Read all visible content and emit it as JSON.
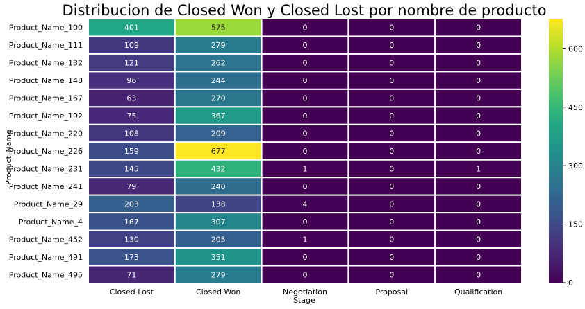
{
  "chart_data": {
    "type": "heatmap",
    "title": "Distribucion de Closed Won y Closed Lost por nombre de producto",
    "xlabel": "Stage",
    "ylabel": "Product_Name",
    "columns": [
      "Closed Lost",
      "Closed Won",
      "Negotiation",
      "Proposal",
      "Qualification"
    ],
    "rows": [
      "Product_Name_100",
      "Product_Name_111",
      "Product_Name_132",
      "Product_Name_148",
      "Product_Name_167",
      "Product_Name_192",
      "Product_Name_220",
      "Product_Name_226",
      "Product_Name_231",
      "Product_Name_241",
      "Product_Name_29",
      "Product_Name_4",
      "Product_Name_452",
      "Product_Name_491",
      "Product_Name_495"
    ],
    "values": [
      [
        401,
        575,
        0,
        0,
        0
      ],
      [
        109,
        279,
        0,
        0,
        0
      ],
      [
        121,
        262,
        0,
        0,
        0
      ],
      [
        96,
        244,
        0,
        0,
        0
      ],
      [
        63,
        270,
        0,
        0,
        0
      ],
      [
        75,
        367,
        0,
        0,
        0
      ],
      [
        108,
        209,
        0,
        0,
        0
      ],
      [
        159,
        677,
        0,
        0,
        0
      ],
      [
        145,
        432,
        1,
        0,
        1
      ],
      [
        79,
        240,
        0,
        0,
        0
      ],
      [
        203,
        138,
        4,
        0,
        0
      ],
      [
        167,
        307,
        0,
        0,
        0
      ],
      [
        130,
        205,
        1,
        0,
        0
      ],
      [
        173,
        351,
        0,
        0,
        0
      ],
      [
        71,
        279,
        0,
        0,
        0
      ]
    ],
    "colormap": "viridis",
    "vmin": 0,
    "vmax": 677,
    "colorbar_ticks": [
      0,
      150,
      300,
      450,
      600
    ],
    "grid": false,
    "legend": "colorbar-right"
  }
}
